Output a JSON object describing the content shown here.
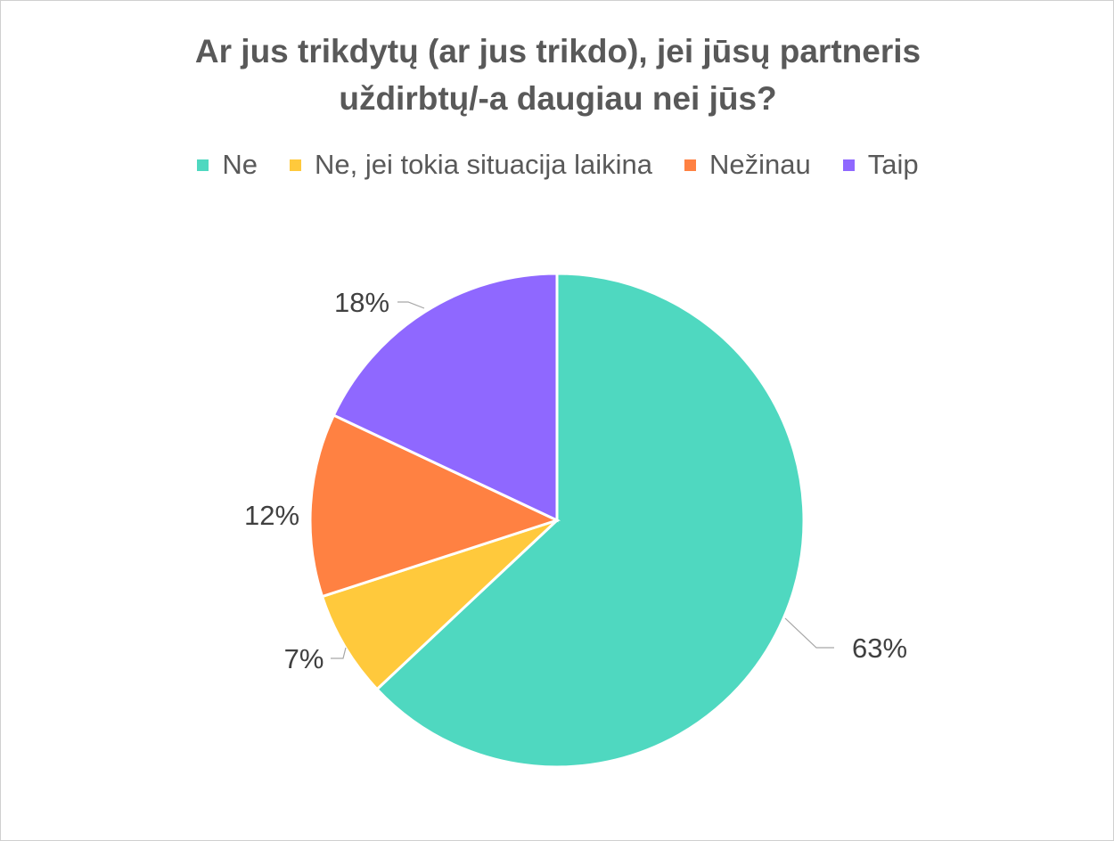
{
  "chart_data": {
    "type": "pie",
    "title_lines": [
      "Ar jus trikdytų (ar jus trikdo), jei jūsų partneris",
      "uždirbtų/-a daugiau nei jūs?"
    ],
    "legend_position": "top",
    "slices": [
      {
        "name": "Ne",
        "value": 63,
        "label": "63%",
        "color": "#4fd8c0"
      },
      {
        "name": "Ne, jei tokia situacija laikina",
        "value": 7,
        "label": "7%",
        "color": "#ffc93c"
      },
      {
        "name": "Nežinau",
        "value": 12,
        "label": "12%",
        "color": "#ff8142"
      },
      {
        "name": "Taip",
        "value": 18,
        "label": "18%",
        "color": "#8f68ff"
      }
    ]
  }
}
